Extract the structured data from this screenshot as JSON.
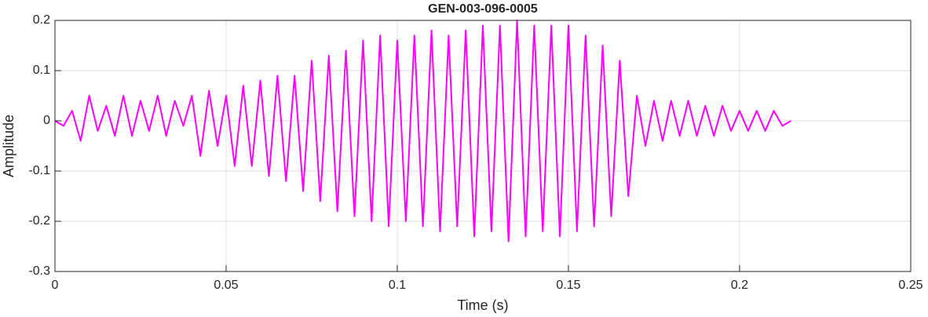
{
  "chart_data": {
    "type": "line",
    "title": "GEN-003-096-0005",
    "xlabel": "Time (s)",
    "ylabel": "Amplitude",
    "x": [
      0,
      0.0025,
      0.005,
      0.0075,
      0.01,
      0.0125,
      0.015,
      0.0175,
      0.02,
      0.0225,
      0.025,
      0.0275,
      0.03,
      0.0325,
      0.035,
      0.0375,
      0.04,
      0.0425,
      0.045,
      0.0475,
      0.05,
      0.0525,
      0.055,
      0.0575,
      0.06,
      0.0625,
      0.065,
      0.0675,
      0.07,
      0.0725,
      0.075,
      0.0775,
      0.08,
      0.0825,
      0.085,
      0.0875,
      0.09,
      0.0925,
      0.095,
      0.0975,
      0.1,
      0.1025,
      0.105,
      0.1075,
      0.11,
      0.1125,
      0.115,
      0.1175,
      0.12,
      0.1225,
      0.125,
      0.1275,
      0.13,
      0.1325,
      0.135,
      0.1375,
      0.14,
      0.1425,
      0.145,
      0.1475,
      0.15,
      0.1525,
      0.155,
      0.1575,
      0.16,
      0.1625,
      0.165,
      0.1675,
      0.17,
      0.1725,
      0.175,
      0.1775,
      0.18,
      0.1825,
      0.185,
      0.1875,
      0.19,
      0.1925,
      0.195,
      0.1975,
      0.2,
      0.2025,
      0.205,
      0.2075,
      0.21,
      0.2125,
      0.215
    ],
    "series": [
      {
        "name": "Amplitude",
        "color": "#ff00ff",
        "values": [
          0,
          -0.01,
          0.02,
          -0.04,
          0.05,
          -0.02,
          0.03,
          -0.03,
          0.05,
          -0.03,
          0.04,
          -0.02,
          0.05,
          -0.03,
          0.04,
          -0.01,
          0.05,
          -0.07,
          0.06,
          -0.05,
          0.05,
          -0.09,
          0.07,
          -0.09,
          0.08,
          -0.11,
          0.09,
          -0.12,
          0.09,
          -0.14,
          0.12,
          -0.16,
          0.13,
          -0.18,
          0.14,
          -0.19,
          0.16,
          -0.2,
          0.17,
          -0.21,
          0.16,
          -0.2,
          0.17,
          -0.21,
          0.18,
          -0.22,
          0.17,
          -0.21,
          0.18,
          -0.23,
          0.19,
          -0.22,
          0.19,
          -0.24,
          0.2,
          -0.23,
          0.19,
          -0.22,
          0.19,
          -0.23,
          0.19,
          -0.22,
          0.17,
          -0.21,
          0.15,
          -0.19,
          0.12,
          -0.15,
          0.05,
          -0.05,
          0.04,
          -0.04,
          0.04,
          -0.03,
          0.04,
          -0.03,
          0.03,
          -0.03,
          0.03,
          -0.02,
          0.02,
          -0.02,
          0.02,
          -0.02,
          0.02,
          -0.01,
          0
        ]
      }
    ],
    "xlim": [
      0,
      0.25
    ],
    "xticks": [
      0,
      0.05,
      0.1,
      0.15,
      0.2,
      0.25
    ],
    "ylim": [
      -0.3,
      0.2
    ],
    "yticks": [
      -0.3,
      -0.2,
      -0.1,
      0,
      0.1,
      0.2
    ],
    "grid": true
  }
}
